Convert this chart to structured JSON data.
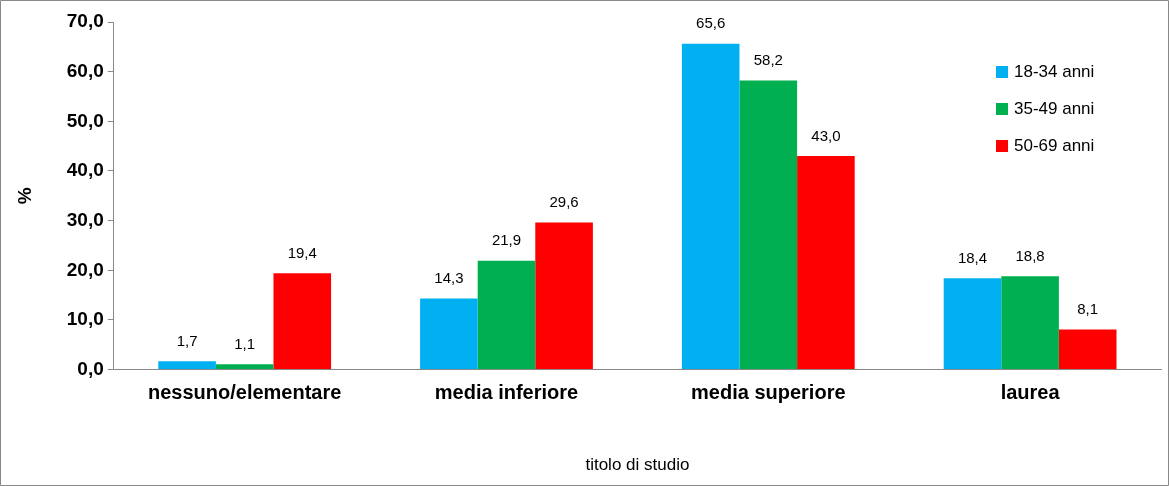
{
  "chart_data": {
    "type": "bar",
    "xlabel": "titolo di studio",
    "ylabel": "%",
    "categories": [
      "nessuno/elementare",
      "media inferiore",
      "media superiore",
      "laurea"
    ],
    "series": [
      {
        "name": "18-34 anni",
        "color": "#00b0f0",
        "values": [
          1.7,
          14.3,
          65.6,
          18.4
        ],
        "value_labels": [
          "1,7",
          "14,3",
          "65,6",
          "18,4"
        ]
      },
      {
        "name": "35-49 anni",
        "color": "#00b050",
        "values": [
          1.1,
          21.9,
          58.2,
          18.8
        ],
        "value_labels": [
          "1,1",
          "21,9",
          "58,2",
          "18,8"
        ]
      },
      {
        "name": "50-69 anni",
        "color": "#ff0000",
        "values": [
          19.4,
          29.6,
          43.0,
          8.1
        ],
        "value_labels": [
          "19,4",
          "29,6",
          "43,0",
          "8,1"
        ]
      }
    ],
    "ylim": [
      0,
      70
    ],
    "yticks": [
      {
        "value": 0,
        "label": "0,0"
      },
      {
        "value": 10,
        "label": "10,0"
      },
      {
        "value": 20,
        "label": "20,0"
      },
      {
        "value": 30,
        "label": "30,0"
      },
      {
        "value": 40,
        "label": "40,0"
      },
      {
        "value": 50,
        "label": "50,0"
      },
      {
        "value": 60,
        "label": "60,0"
      },
      {
        "value": 70,
        "label": "70,0"
      }
    ],
    "grid": false,
    "legend": "top right"
  }
}
